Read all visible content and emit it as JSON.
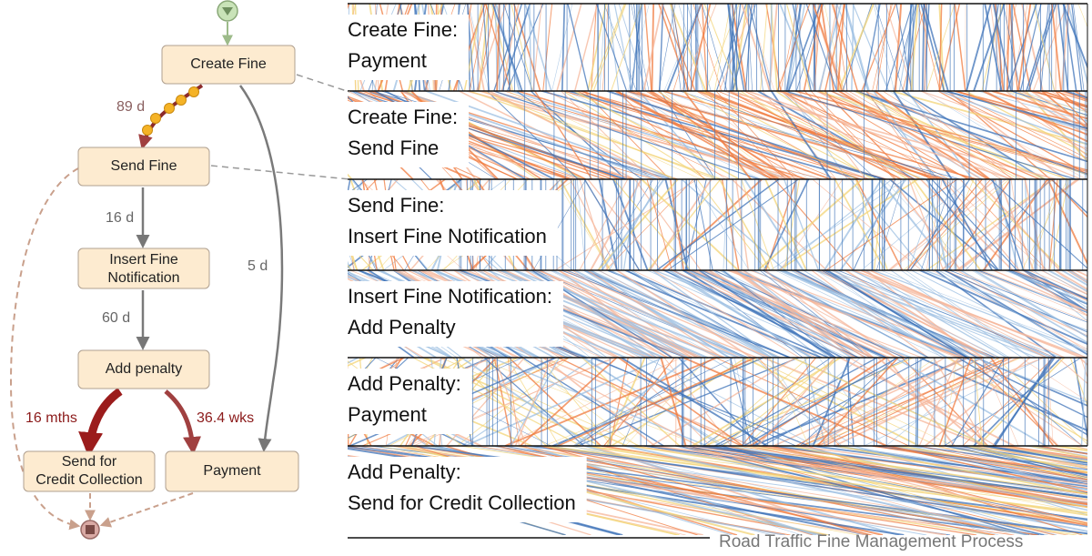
{
  "process_map": {
    "nodes": [
      {
        "label": [
          "Create Fine"
        ]
      },
      {
        "label": [
          "Send Fine"
        ]
      },
      {
        "label": [
          "Insert Fine",
          "Notification"
        ]
      },
      {
        "label": [
          "Add penalty"
        ]
      },
      {
        "label": [
          "Send for",
          "Credit Collection"
        ]
      },
      {
        "label": [
          "Payment"
        ]
      }
    ],
    "edges": [
      {
        "label": "89 d"
      },
      {
        "label": "16 d"
      },
      {
        "label": "60 d"
      },
      {
        "label": "5 d"
      },
      {
        "label": "16 mths"
      },
      {
        "label": "36.4 wks"
      }
    ]
  },
  "spectrum": {
    "panels": [
      {
        "label": [
          "Create Fine:",
          "Payment"
        ]
      },
      {
        "label": [
          "Create Fine:",
          "Send Fine"
        ]
      },
      {
        "label": [
          "Send Fine:",
          "Insert Fine Notification"
        ]
      },
      {
        "label": [
          "Insert Fine Notification:",
          "Add Penalty"
        ]
      },
      {
        "label": [
          "Add Penalty:",
          "Payment"
        ]
      },
      {
        "label": [
          "Add Penalty:",
          "Send for Credit Collection"
        ]
      }
    ],
    "caption": "Road Traffic Fine Management Process"
  }
}
